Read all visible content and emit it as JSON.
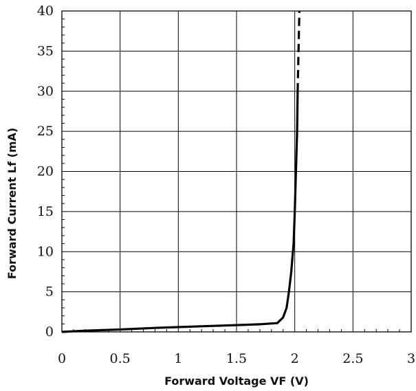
{
  "chart_data": {
    "type": "line",
    "title": "",
    "xlabel": "Forward Voltage VF (V)",
    "ylabel": "Forward Current Lf (mA)",
    "xlim": [
      0,
      3
    ],
    "ylim": [
      0,
      40
    ],
    "x_ticks": [
      "0",
      "0.5",
      "1",
      "1.5",
      "2",
      "2.5",
      "3"
    ],
    "y_ticks": [
      "0",
      "5",
      "10",
      "15",
      "20",
      "25",
      "30",
      "35",
      "40"
    ],
    "grid": true,
    "series": [
      {
        "line_style": "solid",
        "color": "#000000",
        "points": [
          [
            0,
            0
          ],
          [
            0.2,
            0.15
          ],
          [
            0.5,
            0.3
          ],
          [
            0.8,
            0.5
          ],
          [
            1.0,
            0.6
          ],
          [
            1.2,
            0.7
          ],
          [
            1.5,
            0.85
          ],
          [
            1.7,
            0.95
          ],
          [
            1.85,
            1.1
          ],
          [
            1.9,
            1.8
          ],
          [
            1.93,
            3.0
          ],
          [
            1.95,
            5.0
          ],
          [
            1.97,
            7.5
          ],
          [
            1.99,
            11.0
          ],
          [
            2.0,
            15.0
          ],
          [
            2.01,
            20.0
          ],
          [
            2.02,
            25.0
          ],
          [
            2.025,
            30.0
          ]
        ]
      },
      {
        "line_style": "dashed",
        "color": "#000000",
        "points": [
          [
            2.025,
            30.0
          ],
          [
            2.04,
            40.0
          ]
        ]
      }
    ]
  }
}
